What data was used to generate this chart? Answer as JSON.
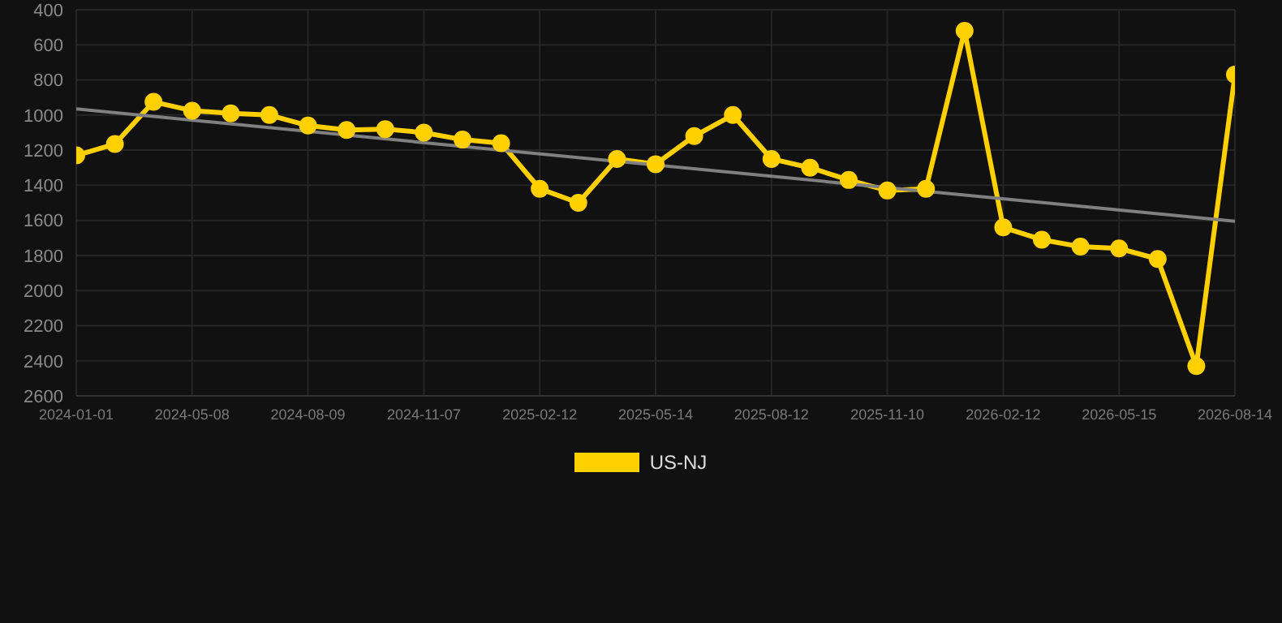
{
  "chart_data": {
    "type": "line",
    "categories": [
      "2024-01-01",
      null,
      null,
      "2024-05-08",
      null,
      null,
      "2024-08-09",
      null,
      null,
      "2024-11-07",
      null,
      null,
      "2025-02-12",
      null,
      null,
      "2025-05-14",
      null,
      null,
      "2025-08-12",
      null,
      null,
      "2025-11-10",
      null,
      null,
      "2026-02-12",
      null,
      null,
      "2026-05-15",
      null,
      null,
      "2026-08-14"
    ],
    "series": [
      {
        "name": "US-NJ",
        "color": "#ffd000",
        "marker": "circle",
        "values": [
          1230,
          1165,
          925,
          975,
          990,
          1000,
          1060,
          1085,
          1080,
          1100,
          1140,
          1160,
          1420,
          1500,
          1250,
          1280,
          1120,
          1000,
          1250,
          1300,
          1370,
          1430,
          1420,
          520,
          1640,
          1710,
          1750,
          1760,
          1820,
          2430,
          770
        ]
      },
      {
        "type": "line",
        "color": "#808080",
        "marker": "none",
        "values": [
          965,
          null,
          null,
          null,
          null,
          null,
          null,
          null,
          null,
          null,
          null,
          null,
          null,
          null,
          null,
          null,
          null,
          null,
          null,
          null,
          null,
          null,
          null,
          null,
          null,
          null,
          null,
          null,
          null,
          null,
          1605
        ]
      }
    ],
    "ylim": [
      2600,
      400
    ],
    "yticks": [
      400,
      600,
      800,
      1000,
      1200,
      1400,
      1600,
      1800,
      2000,
      2200,
      2400,
      2600
    ],
    "grid": true,
    "legend": "bottom",
    "line_style": "solid"
  }
}
